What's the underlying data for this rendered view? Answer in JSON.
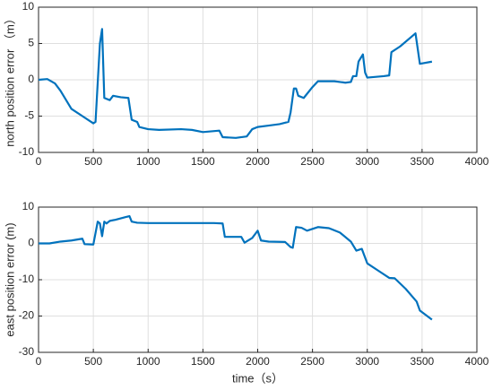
{
  "chart_data": [
    {
      "type": "line",
      "ylabel": "north position error （m）",
      "x": [
        0,
        80,
        150,
        200,
        300,
        400,
        500,
        520,
        560,
        580,
        600,
        650,
        680,
        750,
        820,
        850,
        900,
        920,
        1000,
        1100,
        1300,
        1400,
        1500,
        1650,
        1680,
        1800,
        1900,
        1950,
        2000,
        2100,
        2200,
        2280,
        2300,
        2330,
        2350,
        2370,
        2420,
        2500,
        2550,
        2700,
        2800,
        2850,
        2870,
        2900,
        2920,
        2960,
        2980,
        3000,
        3150,
        3200,
        3220,
        3300,
        3440,
        3480,
        3590
      ],
      "series": [
        {
          "color": "#0072BD",
          "values": [
            0,
            0.1,
            -0.5,
            -1.5,
            -4,
            -5,
            -6,
            -5.8,
            5,
            7,
            -2.5,
            -2.8,
            -2.2,
            -2.4,
            -2.5,
            -5.5,
            -5.8,
            -6.5,
            -6.8,
            -6.9,
            -6.8,
            -6.9,
            -7.2,
            -7,
            -7.9,
            -8,
            -7.8,
            -6.8,
            -6.5,
            -6.3,
            -6.1,
            -5.8,
            -4.5,
            -1.2,
            -1.2,
            -2.2,
            -2.5,
            -1,
            -0.2,
            -0.2,
            -0.4,
            -0.3,
            0.5,
            0.5,
            2.5,
            3.5,
            1,
            0.3,
            0.5,
            0.6,
            3.8,
            4.6,
            6.4,
            2.2,
            2.5
          ]
        }
      ],
      "xlim": [
        0,
        4000
      ],
      "xticks": [
        0,
        500,
        1000,
        1500,
        2000,
        2500,
        3000,
        3500,
        4000
      ],
      "ylim": [
        -10,
        10
      ],
      "yticks": [
        -10,
        -5,
        0,
        5,
        10
      ],
      "grid": true
    },
    {
      "type": "line",
      "ylabel": "east position error (m)",
      "xlabel": "time（s）",
      "x": [
        0,
        100,
        200,
        300,
        380,
        400,
        420,
        500,
        540,
        560,
        580,
        600,
        620,
        650,
        700,
        800,
        830,
        850,
        900,
        1000,
        1200,
        1400,
        1600,
        1680,
        1700,
        1850,
        1880,
        1950,
        2000,
        2030,
        2100,
        2250,
        2300,
        2320,
        2350,
        2400,
        2450,
        2500,
        2550,
        2650,
        2750,
        2850,
        2900,
        2950,
        3000,
        3100,
        3200,
        3250,
        3350,
        3450,
        3480,
        3590
      ],
      "series": [
        {
          "color": "#0072BD",
          "values": [
            0,
            0,
            0.5,
            0.8,
            1.2,
            1.3,
            -0.2,
            -0.3,
            6,
            5.5,
            2,
            6,
            5.5,
            6.2,
            6.5,
            7.3,
            7.5,
            6,
            5.7,
            5.6,
            5.6,
            5.6,
            5.6,
            5.5,
            1.8,
            1.8,
            0.2,
            1.5,
            3.5,
            0.8,
            0.5,
            0.4,
            -1,
            -1.2,
            4.5,
            4.3,
            3.5,
            4,
            4.5,
            4.2,
            3,
            0.5,
            -2,
            -1.5,
            -5.5,
            -7.5,
            -9.5,
            -9.6,
            -12.5,
            -16,
            -18.5,
            -21
          ]
        }
      ],
      "xlim": [
        0,
        4000
      ],
      "xticks": [
        0,
        500,
        1000,
        1500,
        2000,
        2500,
        3000,
        3500,
        4000
      ],
      "ylim": [
        -30,
        10
      ],
      "yticks": [
        -30,
        -20,
        -10,
        0,
        10
      ],
      "grid": true
    }
  ]
}
